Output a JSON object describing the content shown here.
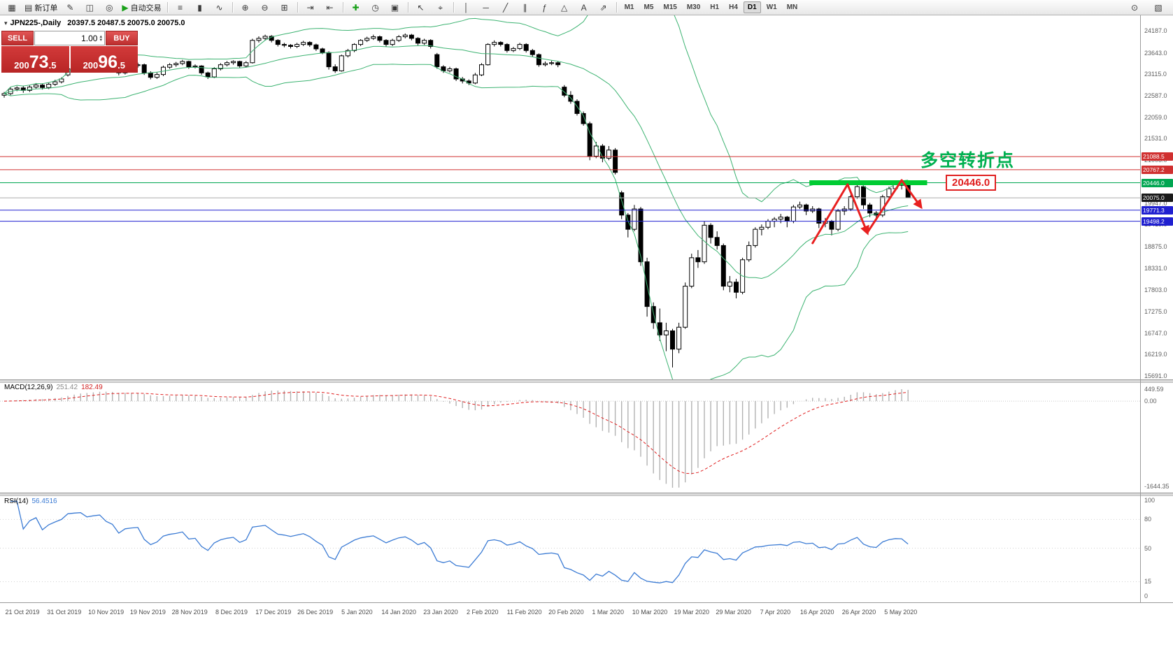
{
  "toolbar": {
    "groups": [
      {
        "items": [
          {
            "name": "new-chart-icon",
            "glyph": "▦"
          },
          {
            "name": "new-order-button",
            "glyph_name": "order-ticket-icon",
            "glyph": "▤",
            "label": "新订单"
          },
          {
            "name": "tools-icon",
            "glyph": "✎"
          },
          {
            "name": "profile-icon",
            "glyph": "◫"
          },
          {
            "name": "support-icon",
            "glyph": "◎"
          },
          {
            "name": "autotrade-button",
            "glyph_name": "autotrade-play-icon",
            "glyph": "▶",
            "glyph_color": "#18a018",
            "label": "自动交易"
          }
        ]
      },
      {
        "items": [
          {
            "name": "bar-chart-icon",
            "glyph": "≡"
          },
          {
            "name": "candle-chart-icon",
            "glyph": "▮"
          },
          {
            "name": "line-chart-icon",
            "glyph": "∿"
          }
        ]
      },
      {
        "items": [
          {
            "name": "zoom-in-icon",
            "glyph": "⊕"
          },
          {
            "name": "zoom-out-icon",
            "glyph": "⊖"
          },
          {
            "name": "tile-windows-icon",
            "glyph": "⊞"
          }
        ]
      },
      {
        "items": [
          {
            "name": "autoscroll-icon",
            "glyph": "⇥"
          },
          {
            "name": "chart-shift-icon",
            "glyph": "⇤"
          }
        ]
      },
      {
        "items": [
          {
            "name": "indicators-icon",
            "glyph": "✚",
            "glyph_color": "#18a018"
          },
          {
            "name": "cycles-icon",
            "glyph": "◷"
          },
          {
            "name": "templates-icon",
            "glyph": "▣"
          }
        ]
      },
      {
        "items": [
          {
            "name": "cursor-icon",
            "glyph": "↖"
          },
          {
            "name": "crosshair-icon",
            "glyph": "⌖"
          }
        ]
      },
      {
        "items": [
          {
            "name": "vertical-line-icon",
            "glyph": "│"
          },
          {
            "name": "horizontal-line-icon",
            "glyph": "─"
          },
          {
            "name": "trendline-icon",
            "glyph": "╱"
          },
          {
            "name": "channel-icon",
            "glyph": "∥"
          },
          {
            "name": "fibonacci-icon",
            "glyph": "ƒ"
          },
          {
            "name": "shapes-icon",
            "glyph": "△"
          },
          {
            "name": "text-icon",
            "glyph": "A"
          },
          {
            "name": "arrow-tools-icon",
            "glyph": "⇗"
          }
        ]
      }
    ],
    "timeframes": [
      {
        "label": "M1"
      },
      {
        "label": "M5"
      },
      {
        "label": "M15"
      },
      {
        "label": "M30"
      },
      {
        "label": "H1"
      },
      {
        "label": "H4"
      },
      {
        "label": "D1",
        "active": true
      },
      {
        "label": "W1"
      },
      {
        "label": "MN"
      }
    ],
    "right_icons": [
      {
        "name": "search-icon",
        "glyph": "⊙"
      },
      {
        "name": "panels-icon",
        "glyph": "▧"
      }
    ]
  },
  "chart_header": {
    "collapse": "▾",
    "symbol": "JPN225-,Daily",
    "ohlc": "20397.5 20487.5 20075.0 20075.0"
  },
  "trade_panel": {
    "sell_label": "SELL",
    "buy_label": "BUY",
    "volume": "1.00",
    "spin_up": "▴",
    "spin_down": "▾",
    "sell_price": "20073.5",
    "buy_price": "20096.5"
  },
  "annotations": {
    "turning_point_text": "多空转折点",
    "price_tag": "20446.0"
  },
  "chart_data": {
    "type": "candlestick",
    "symbol": "JPN225",
    "timeframe": "Daily",
    "title_ohlc": [
      20397.5,
      20487.5,
      20075.0,
      20075.0
    ],
    "y_axis": {
      "labels": [
        "24187.0",
        "23643.0",
        "23115.0",
        "22587.0",
        "22059.0",
        "21531.0",
        "21003.0",
        "20475.0",
        "19947.0",
        "19419.0",
        "18875.0",
        "18331.0",
        "17803.0",
        "17275.0",
        "16747.0",
        "16219.0",
        "15691.0"
      ]
    },
    "x_axis_dates": [
      "21 Oct 2019",
      "31 Oct 2019",
      "10 Nov 2019",
      "19 Nov 2019",
      "28 Nov 2019",
      "8 Dec 2019",
      "17 Dec 2019",
      "26 Dec 2019",
      "5 Jan 2020",
      "14 Jan 2020",
      "23 Jan 2020",
      "2 Feb 2020",
      "11 Feb 2020",
      "20 Feb 2020",
      "1 Mar 2020",
      "10 Mar 2020",
      "19 Mar 2020",
      "29 Mar 2020",
      "7 Apr 2020",
      "16 Apr 2020",
      "26 Apr 2020",
      "5 May 2020"
    ],
    "hlines": [
      {
        "price": 21088.5,
        "label": "21088.5",
        "color": "#d03030",
        "chip": "#d03030"
      },
      {
        "price": 20767.2,
        "label": "20767.2",
        "color": "#d03030",
        "chip": "#d03030"
      },
      {
        "price": 20446.0,
        "label": "20446.0",
        "color": "#00a651",
        "chip": "#00a651"
      },
      {
        "price": 20075.0,
        "label": "20075.0",
        "color": "#ababab",
        "chip": "#1a1a1a"
      },
      {
        "price": 19771.3,
        "label": "19771.3",
        "color": "#2020d0",
        "chip": "#2020d0"
      },
      {
        "price": 19498.2,
        "label": "19498.2",
        "color": "#2020d0",
        "chip": "#2020d0"
      }
    ],
    "thick_segment": {
      "price": 20446.0,
      "from_bar": 126.5,
      "to_bar": 145,
      "color": "#00cc33"
    },
    "zigzag": {
      "color": "#e82020",
      "points": [
        [
          127,
          18959
        ],
        [
          132.5,
          20404
        ],
        [
          135.6,
          19217
        ],
        [
          141,
          20507
        ],
        [
          144,
          19854
        ]
      ]
    },
    "indicators": {
      "bollinger": {
        "period": 20,
        "deviation": 2,
        "color": "#3cb371"
      },
      "macd": {
        "label": "MACD(12,26,9)",
        "value_main": "251.42",
        "value_signal": "182.49",
        "axis": [
          "449.59",
          "0.00",
          "-1644.35"
        ]
      },
      "rsi": {
        "label": "RSI(14)",
        "value": "56.4516",
        "axis": [
          "100",
          "80",
          "50",
          "15",
          "0"
        ],
        "levels": [
          80,
          50,
          15
        ]
      }
    },
    "candles": [
      [
        22600,
        22680,
        22540,
        22640
      ],
      [
        22640,
        22790,
        22600,
        22750
      ],
      [
        22750,
        22820,
        22700,
        22780
      ],
      [
        22780,
        22830,
        22660,
        22720
      ],
      [
        22720,
        22840,
        22680,
        22800
      ],
      [
        22800,
        22900,
        22760,
        22850
      ],
      [
        22850,
        22890,
        22740,
        22790
      ],
      [
        22790,
        22910,
        22750,
        22870
      ],
      [
        22870,
        22980,
        22830,
        22930
      ],
      [
        22930,
        23040,
        22890,
        23000
      ],
      [
        23100,
        23290,
        23060,
        23250
      ],
      [
        23250,
        23340,
        23200,
        23300
      ],
      [
        23300,
        23380,
        23250,
        23330
      ],
      [
        23330,
        23370,
        23230,
        23280
      ],
      [
        23280,
        23390,
        23240,
        23350
      ],
      [
        23350,
        23440,
        23300,
        23400
      ],
      [
        23400,
        23430,
        23280,
        23320
      ],
      [
        23320,
        23360,
        23230,
        23280
      ],
      [
        23280,
        23310,
        23090,
        23150
      ],
      [
        23150,
        23340,
        23110,
        23300
      ],
      [
        23300,
        23380,
        23260,
        23330
      ],
      [
        23330,
        23400,
        23280,
        23350
      ],
      [
        23350,
        23380,
        23100,
        23150
      ],
      [
        23150,
        23190,
        22990,
        23040
      ],
      [
        23040,
        23160,
        23000,
        23110
      ],
      [
        23110,
        23330,
        23070,
        23290
      ],
      [
        23290,
        23390,
        23250,
        23350
      ],
      [
        23350,
        23420,
        23300,
        23380
      ],
      [
        23380,
        23470,
        23340,
        23430
      ],
      [
        23430,
        23450,
        23250,
        23300
      ],
      [
        23300,
        23360,
        23260,
        23320
      ],
      [
        23320,
        23340,
        23100,
        23150
      ],
      [
        23150,
        23180,
        23000,
        23050
      ],
      [
        23050,
        23290,
        23020,
        23250
      ],
      [
        23250,
        23390,
        23210,
        23350
      ],
      [
        23350,
        23440,
        23310,
        23400
      ],
      [
        23400,
        23460,
        23350,
        23430
      ],
      [
        23430,
        23450,
        23270,
        23320
      ],
      [
        23320,
        23440,
        23280,
        23400
      ],
      [
        23400,
        23990,
        23380,
        23950
      ],
      [
        23950,
        24050,
        23900,
        24000
      ],
      [
        24000,
        24090,
        23950,
        24050
      ],
      [
        24050,
        24080,
        23900,
        23950
      ],
      [
        23950,
        23980,
        23800,
        23850
      ],
      [
        23850,
        23890,
        23780,
        23830
      ],
      [
        23830,
        23860,
        23750,
        23800
      ],
      [
        23800,
        23890,
        23760,
        23850
      ],
      [
        23850,
        23940,
        23810,
        23900
      ],
      [
        23900,
        23930,
        23790,
        23840
      ],
      [
        23840,
        23870,
        23690,
        23740
      ],
      [
        23740,
        23770,
        23610,
        23650
      ],
      [
        23650,
        23680,
        23230,
        23300
      ],
      [
        23300,
        23360,
        23150,
        23200
      ],
      [
        23200,
        23600,
        23180,
        23570
      ],
      [
        23570,
        23740,
        23530,
        23700
      ],
      [
        23700,
        23880,
        23660,
        23850
      ],
      [
        23850,
        23980,
        23810,
        23950
      ],
      [
        23950,
        24040,
        23910,
        24000
      ],
      [
        24000,
        24090,
        23960,
        24040
      ],
      [
        24040,
        24070,
        23900,
        23950
      ],
      [
        23950,
        23980,
        23800,
        23850
      ],
      [
        23850,
        23990,
        23810,
        23950
      ],
      [
        23950,
        24080,
        23910,
        24040
      ],
      [
        24040,
        24120,
        24000,
        24080
      ],
      [
        24080,
        24110,
        23950,
        24000
      ],
      [
        24000,
        24030,
        23830,
        23880
      ],
      [
        23880,
        23990,
        23840,
        23950
      ],
      [
        23950,
        23980,
        23750,
        23800
      ],
      [
        23600,
        23640,
        23250,
        23300
      ],
      [
        23300,
        23340,
        23150,
        23200
      ],
      [
        23200,
        23300,
        23160,
        23250
      ],
      [
        23250,
        23280,
        22950,
        23000
      ],
      [
        23000,
        23050,
        22890,
        22950
      ],
      [
        22950,
        22990,
        22850,
        22900
      ],
      [
        22900,
        23150,
        22870,
        23100
      ],
      [
        23100,
        23390,
        23070,
        23350
      ],
      [
        23350,
        23880,
        23330,
        23850
      ],
      [
        23850,
        23950,
        23800,
        23900
      ],
      [
        23900,
        23930,
        23800,
        23850
      ],
      [
        23850,
        23880,
        23650,
        23700
      ],
      [
        23700,
        23790,
        23660,
        23750
      ],
      [
        23750,
        23890,
        23710,
        23850
      ],
      [
        23850,
        23880,
        23650,
        23700
      ],
      [
        23700,
        23740,
        23550,
        23600
      ],
      [
        23600,
        23630,
        23300,
        23350
      ],
      [
        23350,
        23430,
        23310,
        23380
      ],
      [
        23380,
        23450,
        23340,
        23400
      ],
      [
        23400,
        23430,
        23290,
        23350
      ],
      [
        22800,
        22850,
        22550,
        22600
      ],
      [
        22600,
        22700,
        22390,
        22450
      ],
      [
        22450,
        22500,
        22100,
        22150
      ],
      [
        22150,
        22200,
        21850,
        21900
      ],
      [
        21900,
        21950,
        21000,
        21100
      ],
      [
        21100,
        21450,
        21050,
        21350
      ],
      [
        21350,
        21400,
        20950,
        21050
      ],
      [
        21050,
        21350,
        21000,
        21250
      ],
      [
        21250,
        21300,
        20650,
        20700
      ],
      [
        20200,
        20250,
        19550,
        19650
      ],
      [
        19650,
        19700,
        19100,
        19300
      ],
      [
        19300,
        19900,
        19250,
        19800
      ],
      [
        19800,
        19850,
        18400,
        18500
      ],
      [
        18500,
        18600,
        17150,
        17400
      ],
      [
        17400,
        17500,
        16850,
        17000
      ],
      [
        17000,
        17350,
        16550,
        16700
      ],
      [
        16700,
        17000,
        16300,
        16800
      ],
      [
        16800,
        16850,
        15900,
        16350
      ],
      [
        16350,
        17000,
        16250,
        16890
      ],
      [
        16890,
        17990,
        16850,
        17900
      ],
      [
        17900,
        18700,
        17850,
        18600
      ],
      [
        18600,
        18790,
        18350,
        18500
      ],
      [
        18500,
        19500,
        18450,
        19400
      ],
      [
        19400,
        19450,
        18950,
        19100
      ],
      [
        19100,
        19250,
        18800,
        18900
      ],
      [
        18900,
        18950,
        17800,
        17900
      ],
      [
        17900,
        18150,
        17750,
        18000
      ],
      [
        18000,
        18080,
        17600,
        17750
      ],
      [
        17750,
        18600,
        17700,
        18550
      ],
      [
        18550,
        19000,
        18500,
        18900
      ],
      [
        18900,
        19350,
        18850,
        19300
      ],
      [
        19300,
        19420,
        19150,
        19350
      ],
      [
        19350,
        19550,
        19300,
        19500
      ],
      [
        19500,
        19600,
        19350,
        19550
      ],
      [
        19550,
        19680,
        19450,
        19600
      ],
      [
        19600,
        19630,
        19350,
        19500
      ],
      [
        19500,
        19900,
        19450,
        19850
      ],
      [
        19850,
        19980,
        19800,
        19900
      ],
      [
        19900,
        19930,
        19650,
        19750
      ],
      [
        19750,
        19870,
        19700,
        19800
      ],
      [
        19800,
        19830,
        19330,
        19450
      ],
      [
        19450,
        19580,
        19350,
        19500
      ],
      [
        19500,
        19530,
        19150,
        19300
      ],
      [
        19300,
        19800,
        19250,
        19750
      ],
      [
        19750,
        19870,
        19650,
        19800
      ],
      [
        19800,
        20150,
        19750,
        20100
      ],
      [
        20100,
        20400,
        20050,
        20350
      ],
      [
        20350,
        20380,
        19800,
        19900
      ],
      [
        19900,
        19950,
        19600,
        19700
      ],
      [
        19700,
        19750,
        19550,
        19650
      ],
      [
        19650,
        20150,
        19600,
        20100
      ],
      [
        20100,
        20350,
        20050,
        20300
      ],
      [
        20300,
        20450,
        20250,
        20400
      ],
      [
        20400,
        20420,
        20280,
        20390
      ],
      [
        20397.5,
        20487.5,
        20075,
        20075
      ]
    ]
  }
}
